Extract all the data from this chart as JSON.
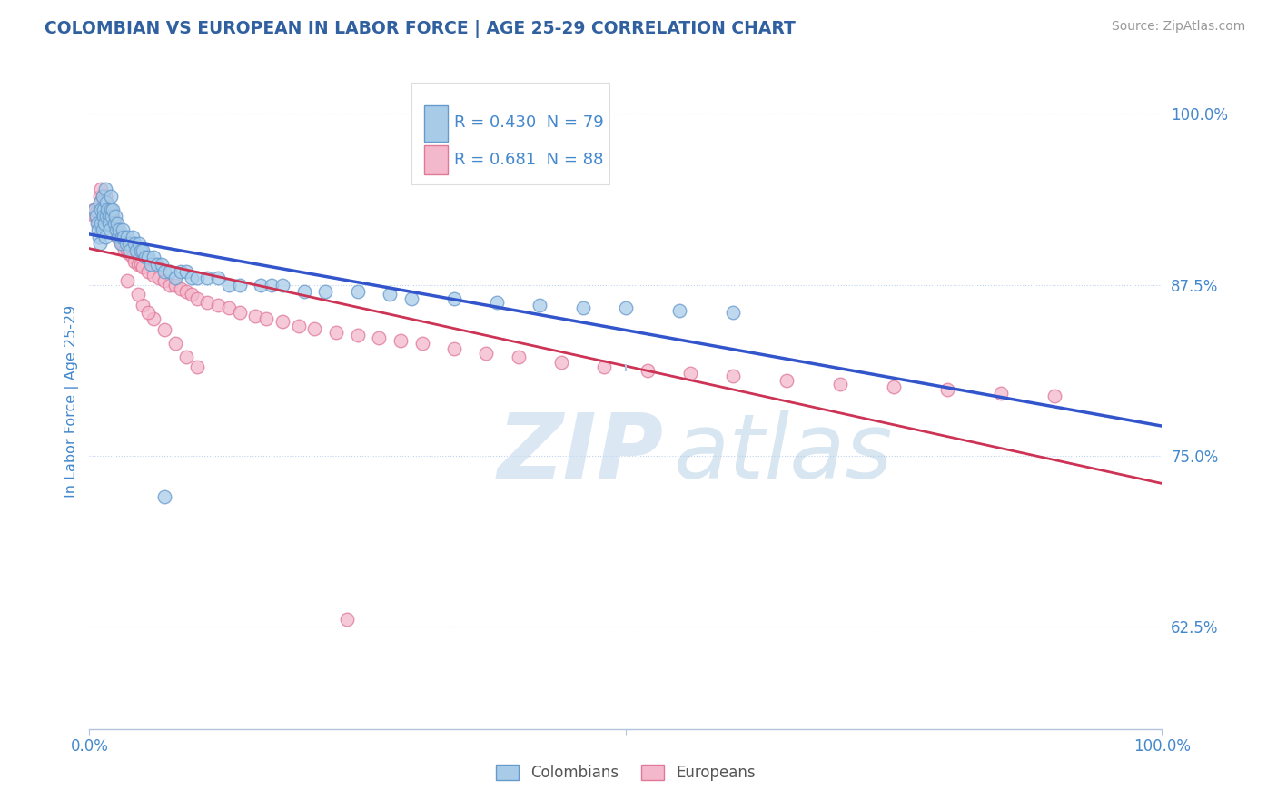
{
  "title": "COLOMBIAN VS EUROPEAN IN LABOR FORCE | AGE 25-29 CORRELATION CHART",
  "source_text": "Source: ZipAtlas.com",
  "ylabel": "In Labor Force | Age 25-29",
  "xlim": [
    0.0,
    1.0
  ],
  "ylim": [
    0.55,
    1.03
  ],
  "ytick_positions": [
    0.625,
    0.75,
    0.875,
    1.0
  ],
  "ytick_labels": [
    "62.5%",
    "75.0%",
    "87.5%",
    "100.0%"
  ],
  "title_color": "#3060a0",
  "axis_color": "#4488cc",
  "grid_color": "#c0d4ec",
  "colombian_color": "#a8cce8",
  "colombian_edge_color": "#6699cc",
  "european_color": "#f4b8cc",
  "european_edge_color": "#e07898",
  "blue_line_color": "#3355cc",
  "pink_line_color": "#cc3355",
  "R_colombian": 0.43,
  "N_colombian": 79,
  "R_european": 0.681,
  "N_european": 88,
  "legend_colombians": "Colombians",
  "legend_europeans": "Europeans",
  "watermark_zip": "ZIP",
  "watermark_atlas": "atlas",
  "colombian_x": [
    0.005,
    0.006,
    0.007,
    0.008,
    0.009,
    0.01,
    0.01,
    0.011,
    0.011,
    0.012,
    0.012,
    0.013,
    0.013,
    0.014,
    0.015,
    0.015,
    0.016,
    0.016,
    0.017,
    0.018,
    0.018,
    0.019,
    0.02,
    0.02,
    0.021,
    0.022,
    0.023,
    0.024,
    0.025,
    0.026,
    0.027,
    0.028,
    0.029,
    0.03,
    0.031,
    0.032,
    0.034,
    0.035,
    0.037,
    0.038,
    0.04,
    0.042,
    0.044,
    0.046,
    0.048,
    0.05,
    0.052,
    0.055,
    0.057,
    0.06,
    0.063,
    0.067,
    0.07,
    0.075,
    0.08,
    0.085,
    0.09,
    0.095,
    0.1,
    0.11,
    0.12,
    0.13,
    0.14,
    0.16,
    0.17,
    0.18,
    0.2,
    0.22,
    0.25,
    0.28,
    0.3,
    0.34,
    0.38,
    0.42,
    0.46,
    0.5,
    0.55,
    0.6,
    0.07
  ],
  "colombian_y": [
    0.93,
    0.925,
    0.92,
    0.915,
    0.91,
    0.935,
    0.905,
    0.93,
    0.92,
    0.94,
    0.915,
    0.93,
    0.925,
    0.92,
    0.945,
    0.91,
    0.935,
    0.925,
    0.93,
    0.925,
    0.92,
    0.915,
    0.94,
    0.93,
    0.925,
    0.93,
    0.92,
    0.925,
    0.915,
    0.92,
    0.91,
    0.915,
    0.905,
    0.91,
    0.915,
    0.91,
    0.905,
    0.91,
    0.905,
    0.9,
    0.91,
    0.905,
    0.9,
    0.905,
    0.9,
    0.9,
    0.895,
    0.895,
    0.89,
    0.895,
    0.89,
    0.89,
    0.885,
    0.885,
    0.88,
    0.885,
    0.885,
    0.88,
    0.88,
    0.88,
    0.88,
    0.875,
    0.875,
    0.875,
    0.875,
    0.875,
    0.87,
    0.87,
    0.87,
    0.868,
    0.865,
    0.865,
    0.862,
    0.86,
    0.858,
    0.858,
    0.856,
    0.855,
    0.72
  ],
  "european_x": [
    0.004,
    0.005,
    0.006,
    0.007,
    0.008,
    0.009,
    0.01,
    0.01,
    0.011,
    0.011,
    0.012,
    0.012,
    0.013,
    0.014,
    0.014,
    0.015,
    0.016,
    0.016,
    0.017,
    0.018,
    0.019,
    0.02,
    0.02,
    0.021,
    0.022,
    0.023,
    0.024,
    0.025,
    0.026,
    0.027,
    0.028,
    0.03,
    0.031,
    0.033,
    0.035,
    0.037,
    0.04,
    0.042,
    0.045,
    0.048,
    0.05,
    0.055,
    0.06,
    0.065,
    0.07,
    0.075,
    0.08,
    0.085,
    0.09,
    0.095,
    0.1,
    0.11,
    0.12,
    0.13,
    0.14,
    0.155,
    0.165,
    0.18,
    0.195,
    0.21,
    0.23,
    0.25,
    0.27,
    0.29,
    0.31,
    0.34,
    0.37,
    0.4,
    0.44,
    0.48,
    0.52,
    0.56,
    0.6,
    0.65,
    0.7,
    0.75,
    0.8,
    0.85,
    0.9,
    0.05,
    0.06,
    0.07,
    0.08,
    0.09,
    0.1,
    0.035,
    0.045,
    0.055
  ],
  "european_y": [
    0.93,
    0.925,
    0.925,
    0.93,
    0.92,
    0.93,
    0.94,
    0.935,
    0.93,
    0.945,
    0.94,
    0.93,
    0.935,
    0.935,
    0.925,
    0.94,
    0.935,
    0.928,
    0.932,
    0.928,
    0.925,
    0.93,
    0.92,
    0.928,
    0.925,
    0.92,
    0.918,
    0.915,
    0.912,
    0.91,
    0.908,
    0.905,
    0.905,
    0.9,
    0.9,
    0.898,
    0.895,
    0.892,
    0.89,
    0.89,
    0.888,
    0.885,
    0.882,
    0.88,
    0.878,
    0.875,
    0.875,
    0.872,
    0.87,
    0.868,
    0.865,
    0.862,
    0.86,
    0.858,
    0.855,
    0.852,
    0.85,
    0.848,
    0.845,
    0.843,
    0.84,
    0.838,
    0.836,
    0.834,
    0.832,
    0.828,
    0.825,
    0.822,
    0.818,
    0.815,
    0.812,
    0.81,
    0.808,
    0.805,
    0.802,
    0.8,
    0.798,
    0.796,
    0.794,
    0.86,
    0.85,
    0.842,
    0.832,
    0.822,
    0.815,
    0.878,
    0.868,
    0.855
  ],
  "european_outlier_x": [
    0.24
  ],
  "european_outlier_y": [
    0.63
  ]
}
